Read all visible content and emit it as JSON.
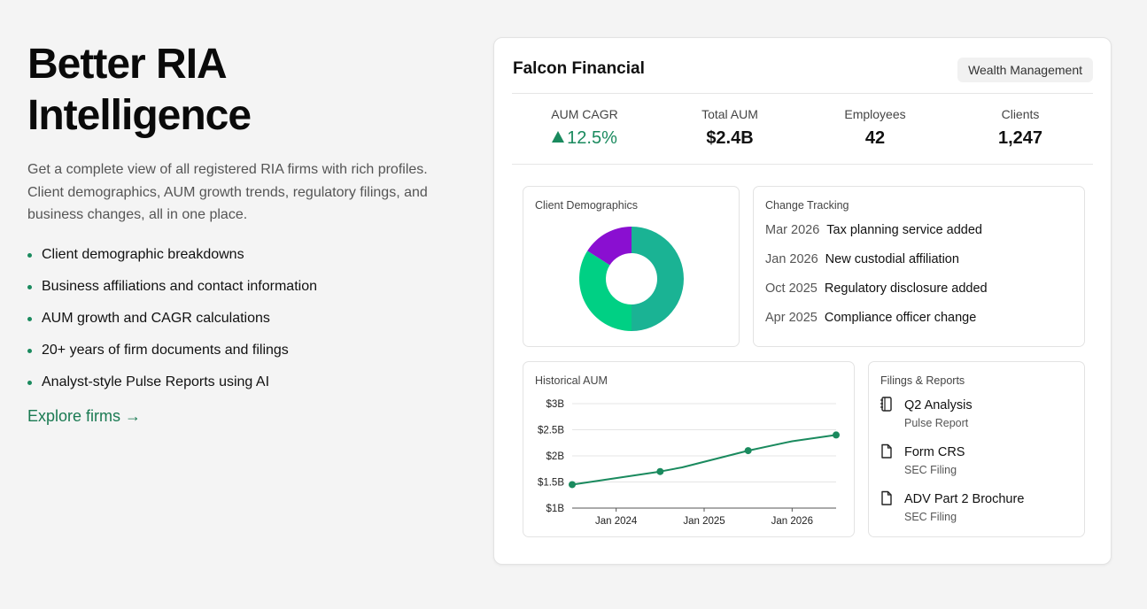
{
  "hero": {
    "title_line1": "Better RIA",
    "title_line2": "Intelligence",
    "description": "Get a complete view of all registered RIA firms with rich profiles. Client demographics, AUM growth trends, regulatory filings, and business changes, all in one place.",
    "bullets": [
      "Client demographic breakdowns",
      "Business affiliations and contact information",
      "AUM growth and CAGR calculations",
      "20+ years of firm documents and filings",
      "Analyst-style Pulse Reports using AI"
    ],
    "cta": "Explore firms →"
  },
  "firm": {
    "name": "Falcon Financial",
    "category": "Wealth Management",
    "stats": [
      {
        "label": "AUM CAGR",
        "value": "12.5%",
        "trend": "up"
      },
      {
        "label": "Total AUM",
        "value": "$2.4B"
      },
      {
        "label": "Employees",
        "value": "42"
      },
      {
        "label": "Clients",
        "value": "1,247"
      }
    ]
  },
  "demographics": {
    "title": "Client Demographics",
    "chart_data": {
      "type": "pie",
      "slices": [
        {
          "value": 50,
          "color": "#1ab394"
        },
        {
          "value": 34,
          "color": "#00d084"
        },
        {
          "value": 16,
          "color": "#8a0fd1"
        }
      ]
    }
  },
  "change_tracking": {
    "title": "Change Tracking",
    "events": [
      {
        "date": "Mar 2026",
        "event": "Tax planning service added"
      },
      {
        "date": "Jan 2026",
        "event": "New custodial affiliation"
      },
      {
        "date": "Oct 2025",
        "event": "Regulatory disclosure added"
      },
      {
        "date": "Apr 2025",
        "event": "Compliance officer change"
      }
    ]
  },
  "historical_aum": {
    "title": "Historical AUM",
    "chart_data": {
      "type": "line",
      "yticks": [
        "$3B",
        "$2.5B",
        "$2B",
        "$1.5B",
        "$1B"
      ],
      "ylim": [
        1.0,
        3.0
      ],
      "xticks": [
        {
          "label": "Jan 2024",
          "x": 2024.0
        },
        {
          "label": "Jan 2025",
          "x": 2025.0
        },
        {
          "label": "Jan 2026",
          "x": 2026.0
        }
      ],
      "xlim": [
        2023.5,
        2026.5
      ],
      "line_points": [
        {
          "x": 2023.5,
          "y": 1.45
        },
        {
          "x": 2024.5,
          "y": 1.7
        },
        {
          "x": 2024.75,
          "y": 1.78
        },
        {
          "x": 2025.5,
          "y": 2.1
        },
        {
          "x": 2026.0,
          "y": 2.28
        },
        {
          "x": 2026.5,
          "y": 2.4
        }
      ],
      "markers": [
        {
          "x": 2023.5,
          "y": 1.45
        },
        {
          "x": 2024.5,
          "y": 1.7
        },
        {
          "x": 2025.5,
          "y": 2.1
        },
        {
          "x": 2026.5,
          "y": 2.4
        }
      ],
      "color": "#1a8a5e"
    }
  },
  "filings": {
    "title": "Filings & Reports",
    "items": [
      {
        "name": "Q2 Analysis",
        "type": "Pulse Report",
        "icon": "notebook-icon"
      },
      {
        "name": "Form CRS",
        "type": "SEC Filing",
        "icon": "document-icon"
      },
      {
        "name": "ADV Part 2 Brochure",
        "type": "SEC Filing",
        "icon": "document-icon"
      }
    ]
  }
}
